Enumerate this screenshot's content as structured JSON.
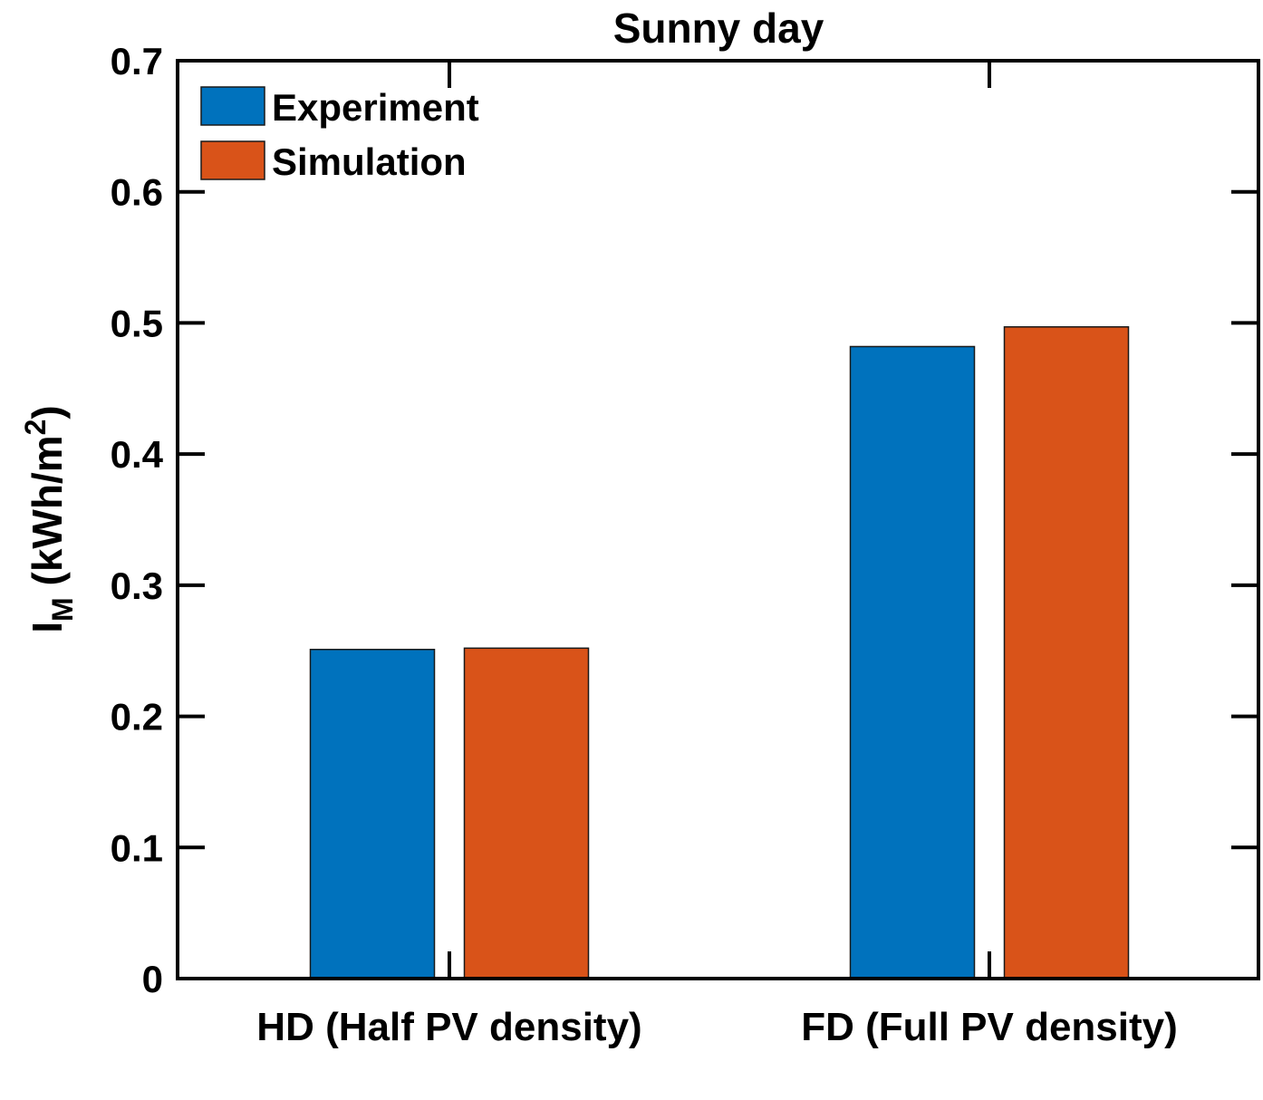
{
  "chart_data": {
    "type": "bar",
    "title": "Sunny day",
    "xlabel": "",
    "ylabel": {
      "main": "I",
      "subscript": "M",
      "units_open": " (kWh/m",
      "superscript": "2",
      "units_close": ")"
    },
    "categories": [
      "HD (Half PV density)",
      "FD (Full PV density)"
    ],
    "series": [
      {
        "name": "Experiment",
        "color": "#0072BD",
        "values": [
          0.251,
          0.482
        ]
      },
      {
        "name": "Simulation",
        "color": "#D95319",
        "values": [
          0.252,
          0.497
        ]
      }
    ],
    "ylim": [
      0,
      0.7
    ],
    "yticks": [
      "0",
      "0.1",
      "0.2",
      "0.3",
      "0.4",
      "0.5",
      "0.6",
      "0.7"
    ],
    "grid": false,
    "legend_position": "top-left"
  }
}
